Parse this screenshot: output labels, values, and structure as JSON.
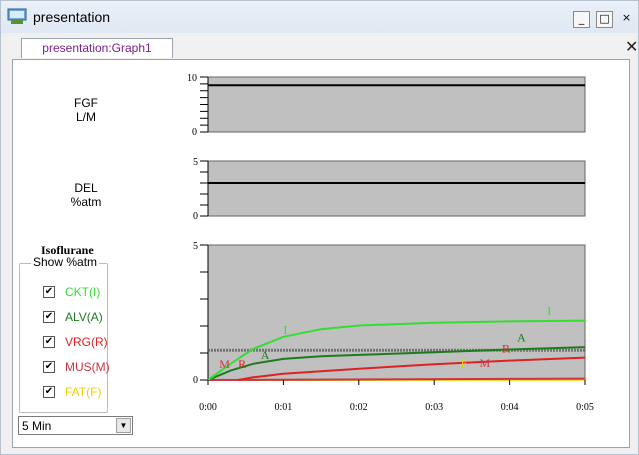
{
  "window": {
    "title": "presentation",
    "minimize": "_",
    "maximize": "□",
    "close": "×"
  },
  "tab": {
    "label": "presentation:Graph1",
    "close": "✕"
  },
  "plots": {
    "fgf": {
      "label_line1": "FGF",
      "label_line2": "L/M",
      "y_max": "10",
      "y_min": "0"
    },
    "del": {
      "label_line1": "DEL",
      "label_line2": "%atm",
      "y_max": "5",
      "y_min": "0"
    },
    "iso": {
      "y_max": "5",
      "y_min": "0"
    }
  },
  "isoflurane": {
    "title": "Isoflurane",
    "group_label": "Show %atm",
    "checkboxes": [
      {
        "label": "CKT(I)",
        "checked": true,
        "color": "#33dd33"
      },
      {
        "label": "ALV(A)",
        "checked": true,
        "color": "#1e7a1e"
      },
      {
        "label": "VRG(R)",
        "checked": true,
        "color": "#dd2222"
      },
      {
        "label": "MUS(M)",
        "checked": true,
        "color": "#cc3344"
      },
      {
        "label": "FAT(F)",
        "checked": true,
        "color": "#f0d000"
      }
    ]
  },
  "time_range": {
    "selected": "5 Min"
  },
  "chart_data": [
    {
      "type": "line",
      "name": "FGF",
      "ylim": [
        0,
        10
      ],
      "series": [
        {
          "values": [
            [
              0,
              8.5
            ],
            [
              5,
              8.5
            ]
          ]
        }
      ]
    },
    {
      "type": "line",
      "name": "DEL",
      "ylim": [
        0,
        5
      ],
      "series": [
        {
          "values": [
            [
              0,
              3.0
            ],
            [
              5,
              3.0
            ]
          ]
        }
      ]
    },
    {
      "type": "line",
      "ylim": [
        0,
        5
      ],
      "xlim": [
        0,
        5
      ],
      "x_ticks": [
        "0:00",
        "0:01",
        "0:02",
        "0:03",
        "0:04",
        "0:05"
      ],
      "reference_line": 1.1,
      "series": [
        {
          "marker": "I",
          "color": "#33dd33",
          "values": [
            [
              0,
              0
            ],
            [
              0.3,
              0.6
            ],
            [
              0.6,
              1.15
            ],
            [
              1,
              1.6
            ],
            [
              1.5,
              1.88
            ],
            [
              2,
              2.02
            ],
            [
              3,
              2.12
            ],
            [
              4,
              2.17
            ],
            [
              5,
              2.2
            ]
          ]
        },
        {
          "marker": "A",
          "color": "#1e7a1e",
          "values": [
            [
              0,
              0
            ],
            [
              0.3,
              0.35
            ],
            [
              0.6,
              0.6
            ],
            [
              1,
              0.78
            ],
            [
              1.5,
              0.88
            ],
            [
              2,
              0.93
            ],
            [
              3,
              1.03
            ],
            [
              4,
              1.13
            ],
            [
              5,
              1.22
            ]
          ]
        },
        {
          "marker": "R",
          "color": "#dd2222",
          "values": [
            [
              0.4,
              0
            ],
            [
              0.6,
              0.1
            ],
            [
              1,
              0.23
            ],
            [
              2,
              0.42
            ],
            [
              3,
              0.58
            ],
            [
              4,
              0.72
            ],
            [
              5,
              0.83
            ]
          ]
        },
        {
          "marker": "M",
          "color": "#cc3344",
          "values": [
            [
              0,
              0
            ],
            [
              5,
              0.05
            ]
          ]
        },
        {
          "marker": "F",
          "color": "#f0d000",
          "values": [
            [
              0,
              0
            ],
            [
              5,
              0.01
            ]
          ]
        }
      ],
      "marker_labels": [
        {
          "text": "I",
          "color": "#33dd33",
          "x": 1.0,
          "y": 1.72
        },
        {
          "text": "I",
          "color": "#33dd33",
          "x": 4.5,
          "y": 2.4
        },
        {
          "text": "A",
          "color": "#1e7a1e",
          "x": 0.7,
          "y": 0.78
        },
        {
          "text": "A",
          "color": "#1e7a1e",
          "x": 4.1,
          "y": 1.42
        },
        {
          "text": "R",
          "color": "#dd2222",
          "x": 0.4,
          "y": 0.45
        },
        {
          "text": "R",
          "color": "#dd2222",
          "x": 3.9,
          "y": 1.02
        },
        {
          "text": "M",
          "color": "#cc3344",
          "x": 0.15,
          "y": 0.45
        },
        {
          "text": "F",
          "color": "#f0d000",
          "x": 3.35,
          "y": 0.48
        },
        {
          "text": "M",
          "color": "#cc3344",
          "x": 3.6,
          "y": 0.48
        }
      ]
    }
  ]
}
